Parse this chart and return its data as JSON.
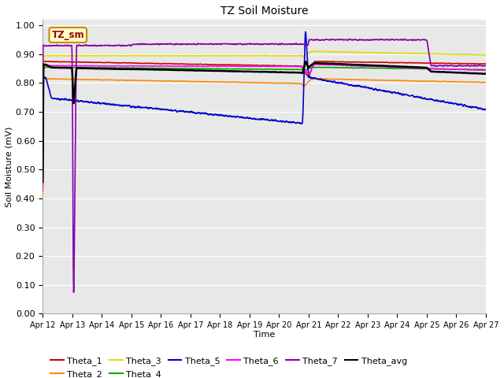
{
  "title": "TZ Soil Moisture",
  "xlabel": "Time",
  "ylabel": "Soil Moisture (mV)",
  "ylim": [
    0.0,
    1.02
  ],
  "yticks": [
    0.0,
    0.1,
    0.2,
    0.3,
    0.4,
    0.5,
    0.6,
    0.7,
    0.8,
    0.9,
    1.0
  ],
  "xtick_labels": [
    "Apr 12",
    "Apr 13",
    "Apr 14",
    "Apr 15",
    "Apr 16",
    "Apr 17",
    "Apr 18",
    "Apr 19",
    "Apr 20",
    "Apr 21",
    "Apr 22",
    "Apr 23",
    "Apr 24",
    "Apr 25",
    "Apr 26",
    "Apr 27"
  ],
  "background_color": "#e8e8e8",
  "legend_label": "TZ_sm",
  "series": {
    "Theta_1": {
      "color": "#cc0000",
      "lw": 1.2
    },
    "Theta_2": {
      "color": "#ff8800",
      "lw": 1.2
    },
    "Theta_3": {
      "color": "#dddd00",
      "lw": 1.2
    },
    "Theta_4": {
      "color": "#00aa00",
      "lw": 1.2
    },
    "Theta_5": {
      "color": "#0000cc",
      "lw": 1.2
    },
    "Theta_6": {
      "color": "#ff00ff",
      "lw": 1.2
    },
    "Theta_7": {
      "color": "#8800aa",
      "lw": 1.2
    },
    "Theta_avg": {
      "color": "#000000",
      "lw": 1.8
    }
  }
}
